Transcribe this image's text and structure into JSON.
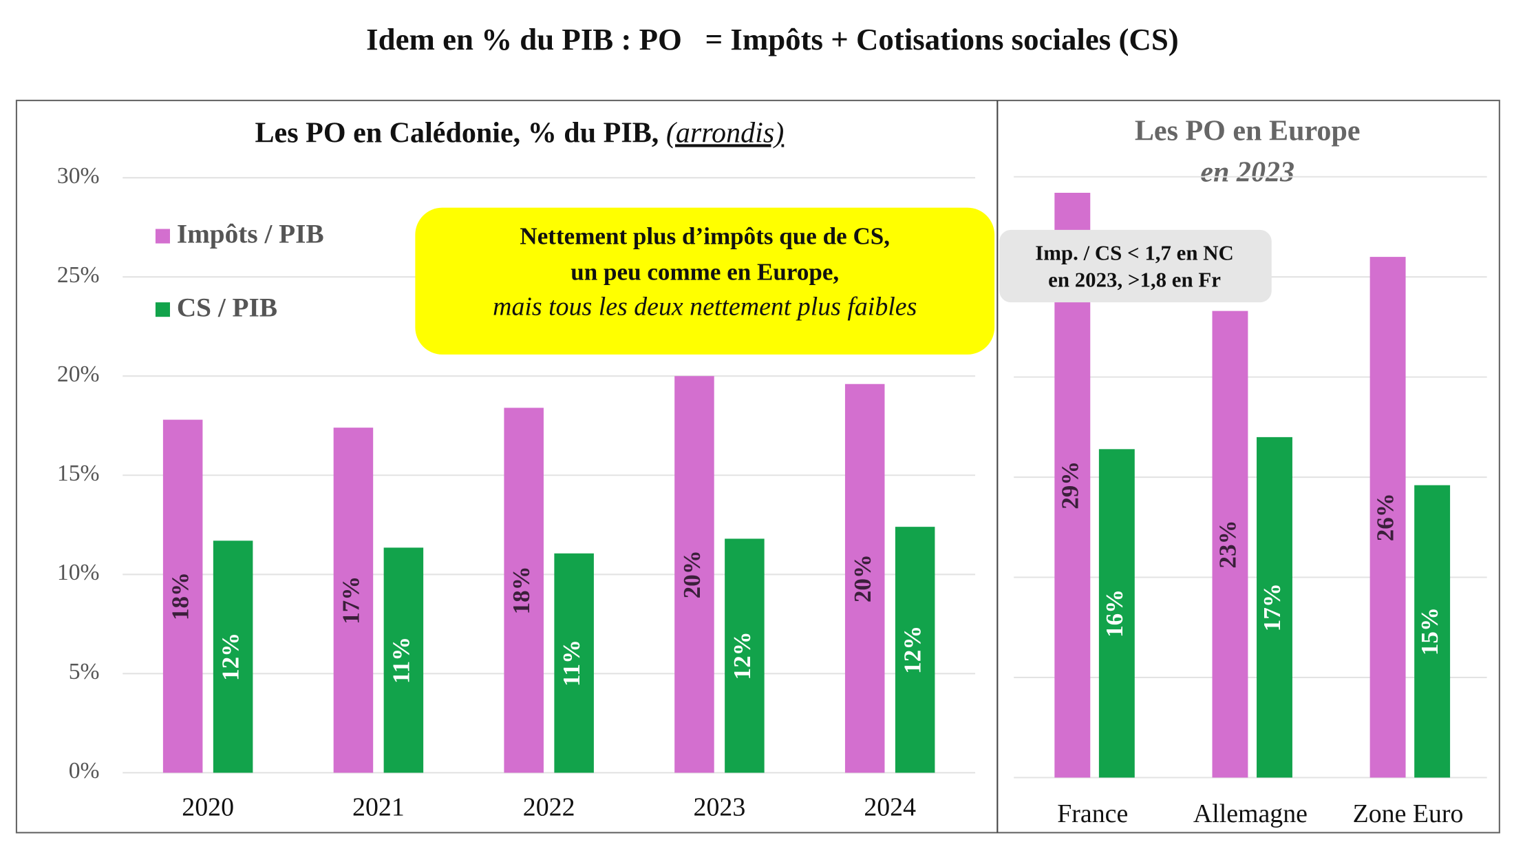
{
  "title": "Idem en % du PIB : PO   = Impôts + Cotisations sociales (CS)",
  "chart_data": [
    {
      "type": "bar",
      "title": "Les PO en Calédonie, % du PIB, ",
      "title_note": "(arrondis)",
      "categories": [
        "2020",
        "2021",
        "2022",
        "2023",
        "2024"
      ],
      "series": [
        {
          "name": "Impôts / PIB",
          "color": "#d36fcf",
          "values": [
            17.8,
            17.4,
            18.4,
            20.0,
            19.6
          ],
          "value_labels": [
            "18%",
            "17%",
            "18%",
            "20%",
            "20%"
          ]
        },
        {
          "name": "CS / PIB",
          "color": "#12a34b",
          "values": [
            11.7,
            11.35,
            11.06,
            11.8,
            12.4
          ],
          "value_labels": [
            "12%",
            "11%",
            "11%",
            "12%",
            "12%"
          ]
        }
      ],
      "ylim": [
        0,
        30
      ],
      "yticks": [
        {
          "value": 0,
          "label": "0%"
        },
        {
          "value": 5,
          "label": "5%"
        },
        {
          "value": 10,
          "label": "10%"
        },
        {
          "value": 15,
          "label": "15%"
        },
        {
          "value": 20,
          "label": "20%"
        },
        {
          "value": 25,
          "label": "25%"
        },
        {
          "value": 30,
          "label": "30%"
        }
      ],
      "tick_labels": true,
      "grid": true,
      "legend": "top-left",
      "annotation": [
        "Nettement plus d’impôts que de CS,",
        "un peu comme en Europe,",
        "mais tous les deux nettement plus faibles"
      ]
    },
    {
      "type": "bar",
      "title": "Les PO en Europe",
      "subtitle": "en 2023",
      "categories": [
        "France",
        "Allemagne",
        "Zone Euro"
      ],
      "series": [
        {
          "color": "#d36fcf",
          "values": [
            29.2,
            23.3,
            26.0
          ],
          "value_labels": [
            "29%",
            "23%",
            "26%"
          ]
        },
        {
          "color": "#12a34b",
          "values": [
            16.4,
            17.0,
            14.6
          ],
          "value_labels": [
            "16%",
            "17%",
            "15%"
          ]
        }
      ],
      "ylim": [
        0,
        30
      ],
      "yticks": [
        0,
        5,
        10,
        15,
        20,
        25,
        30
      ],
      "tick_labels": false,
      "grid": true,
      "annotation": [
        "Imp. / CS < 1,7 en NC",
        "en 2023, >1,8 en Fr"
      ]
    }
  ]
}
